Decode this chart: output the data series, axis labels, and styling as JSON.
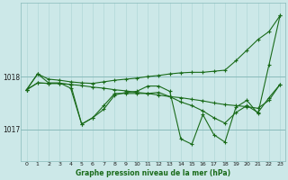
{
  "title": "Graphe pression niveau de la mer (hPa)",
  "background_color": "#cce8e8",
  "grid_color_major": "#88bbbb",
  "grid_color_minor": "#aad4d4",
  "line_color": "#1a6b1a",
  "x_ticks": [
    0,
    1,
    2,
    3,
    4,
    5,
    6,
    7,
    8,
    9,
    10,
    11,
    12,
    13,
    14,
    15,
    16,
    17,
    18,
    19,
    20,
    21,
    22,
    23
  ],
  "ylim": [
    1016.4,
    1019.4
  ],
  "y_ticks": [
    1017,
    1018
  ],
  "line_width": 0.8,
  "marker_size": 2.5,
  "envelope_top": [
    1017.75,
    1018.05,
    1017.95,
    1017.93,
    1017.9,
    1017.88,
    1017.87,
    1017.9,
    1017.93,
    1017.95,
    1017.97,
    1018.0,
    1018.02,
    1018.05,
    1018.07,
    1018.08,
    1018.08,
    1018.1,
    1018.12,
    1018.3,
    1018.5,
    1018.7,
    1018.85,
    1019.15
  ],
  "envelope_bot": [
    1017.75,
    1017.88,
    1017.87,
    1017.87,
    1017.85,
    1017.83,
    1017.8,
    1017.78,
    1017.75,
    1017.73,
    1017.7,
    1017.68,
    1017.65,
    1017.62,
    1017.6,
    1017.57,
    1017.54,
    1017.5,
    1017.47,
    1017.45,
    1017.43,
    1017.4,
    1017.55,
    1017.85
  ],
  "main_line": [
    1017.75,
    1018.05,
    1017.88,
    1017.88,
    1017.78,
    1017.1,
    1017.22,
    1017.38,
    1017.65,
    1017.7,
    1017.72,
    1017.82,
    1017.82,
    1017.72,
    1016.82,
    1016.72,
    1017.28,
    1016.9,
    1016.76,
    1017.42,
    1017.55,
    1017.3,
    1018.22,
    1019.15
  ],
  "mid_line": [
    1017.75,
    1017.88,
    1017.87,
    1017.87,
    1017.85,
    1017.1,
    1017.22,
    1017.45,
    1017.68,
    1017.68,
    1017.68,
    1017.68,
    1017.7,
    1017.62,
    1017.52,
    1017.45,
    1017.35,
    1017.22,
    1017.12,
    1017.32,
    1017.45,
    1017.32,
    1017.6,
    1017.85
  ]
}
